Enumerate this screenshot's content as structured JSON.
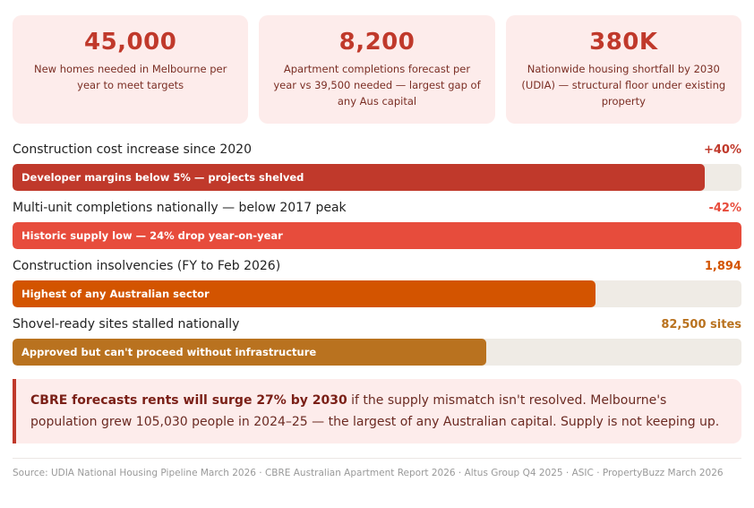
{
  "stat_cards": [
    {
      "value": "45,000",
      "description": "New homes needed in Melbourne per year to meet targets"
    },
    {
      "value": "8,200",
      "description": "Apartment completions forecast per year vs 39,500 needed — largest gap of any Aus capital"
    },
    {
      "value": "380K",
      "description": "Nationwide housing shortfall by 2030 (UDIA) — structural floor under existing property"
    }
  ],
  "chart_data": {
    "type": "bar",
    "orientation": "horizontal",
    "title": "",
    "categories": [
      "Construction cost increase since 2020",
      "Multi-unit completions nationally — below 2017 peak",
      "Construction insolvencies (FY to Feb 2026)",
      "Shovel-ready sites stalled nationally"
    ],
    "value_labels": [
      "+40%",
      "-42%",
      "1,894",
      "82,500 sites"
    ],
    "bar_annotations": [
      "Developer margins below 5% — projects shelved",
      "Historic supply low — 24% drop year-on-year",
      "Highest of any Australian sector",
      "Approved but can't proceed without infrastructure"
    ],
    "fill_percent": [
      95,
      100,
      80,
      65
    ],
    "colors": [
      "#c0392b",
      "#e74c3c",
      "#d35400",
      "#b9721f"
    ],
    "track_color": "#efebe5",
    "xlim": [
      0,
      100
    ],
    "grid": false,
    "legend": "none"
  },
  "callout": {
    "bold": "CBRE forecasts rents will surge 27% by 2030",
    "text": " if the supply mismatch isn't resolved. Melbourne's population grew 105,030 people in 2024–25 — the largest of any Australian capital. Supply is not keeping up."
  },
  "source": "Source: UDIA National Housing Pipeline March 2026 · CBRE Australian Apartment Report 2026 · Altus Group Q4 2025 · ASIC · PropertyBuzz March 2026",
  "colors": {
    "accent": "#c0392b",
    "card_bg": "#fdeceb",
    "card_text": "#7a2e24"
  }
}
